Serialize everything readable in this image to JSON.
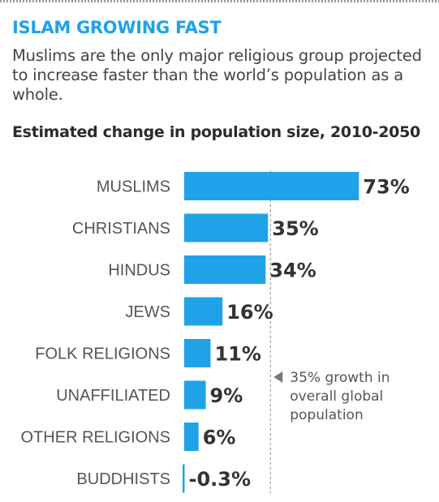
{
  "title": "ISLAM GROWING FAST",
  "subtitle": "Muslims are the only major religious group projected to increase faster than the world’s population as a whole.",
  "chart_heading": "Estimated change in population size, 2010-2050",
  "colors": {
    "title": "#1fa2e8",
    "bar": "#1fa2e8",
    "reference_line": "#9a9a9a"
  },
  "chart_data": {
    "type": "bar",
    "orientation": "horizontal",
    "categories": [
      "MUSLIMS",
      "CHRISTIANS",
      "HINDUS",
      "JEWS",
      "FOLK RELIGIONS",
      "UNAFFILIATED",
      "OTHER RELIGIONS",
      "BUDDHISTS"
    ],
    "values": [
      73,
      35,
      34,
      16,
      11,
      9,
      6,
      -0.3
    ],
    "value_labels": [
      "73%",
      "35%",
      "34%",
      "16%",
      "11%",
      "9%",
      "6%",
      "-0.3%"
    ],
    "reference_line": {
      "value": 35,
      "style": "dashed"
    },
    "annotation": {
      "text": "35% growth in overall global population",
      "lines": [
        "35% growth in",
        "overall global",
        "population"
      ]
    },
    "grid": false
  }
}
